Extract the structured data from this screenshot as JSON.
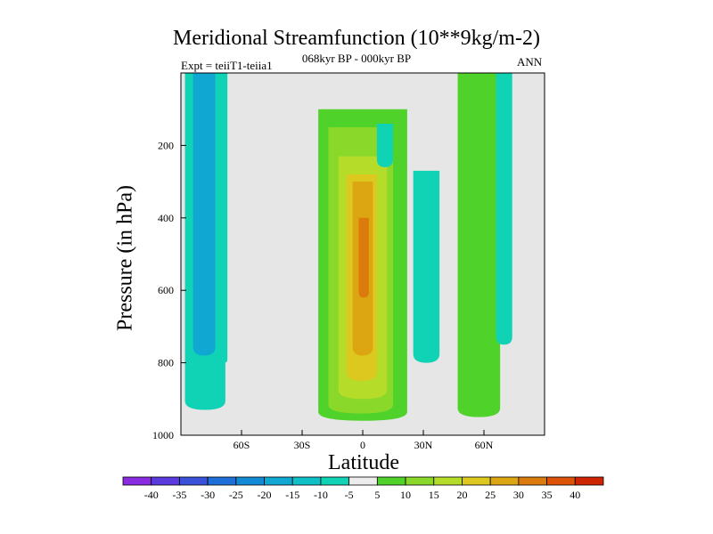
{
  "chart_data": {
    "type": "heatmap",
    "title": "Meridional Streamfunction (10**9kg/m-2)",
    "subtitle": "068kyr BP - 000kyr BP",
    "experiment_label": "Expt = teiiT1-teiia1",
    "season_label": "ANN",
    "xlabel": "Latitude",
    "ylabel": "Pressure (in hPa)",
    "x_range": [
      -90,
      90
    ],
    "y_range": [
      1000,
      0
    ],
    "x_ticks": [
      {
        "value": -60,
        "label": "60S"
      },
      {
        "value": -30,
        "label": "30S"
      },
      {
        "value": 0,
        "label": "0"
      },
      {
        "value": 30,
        "label": "30N"
      },
      {
        "value": 60,
        "label": "60N"
      }
    ],
    "y_ticks": [
      {
        "value": 200,
        "label": "200"
      },
      {
        "value": 400,
        "label": "400"
      },
      {
        "value": 600,
        "label": "600"
      },
      {
        "value": 800,
        "label": "800"
      },
      {
        "value": 1000,
        "label": "1000"
      }
    ],
    "background_color": "#e6e6e6",
    "colorbar": {
      "labels": [
        "-40",
        "-35",
        "-30",
        "-25",
        "-20",
        "-15",
        "-10",
        "-5",
        "5",
        "10",
        "15",
        "20",
        "25",
        "30",
        "35",
        "40"
      ],
      "colors": [
        "#8a2be2",
        "#5a3adc",
        "#3a52d8",
        "#1f6fd9",
        "#138ad6",
        "#10a7d3",
        "#0fbfc8",
        "#10d2b5",
        "#ececec",
        "#4fd22a",
        "#8ad82a",
        "#b6dc2a",
        "#dcc81e",
        "#dca512",
        "#dc7b0d",
        "#dc5206",
        "#cc2500"
      ]
    },
    "regions": [
      {
        "name": "sh-high-lat-negative",
        "value": -10,
        "color": "#10d2b5",
        "lat_min": -88,
        "lat_max": -68,
        "p_top": 0,
        "p_bottom": 930
      },
      {
        "name": "sh-high-lat-core",
        "value": -15,
        "color": "#10a7d3",
        "lat_min": -84,
        "lat_max": -73,
        "p_top": 0,
        "p_bottom": 780
      },
      {
        "name": "sh-narrow-column",
        "value": -5,
        "color": "#10d2b5",
        "lat_min": -70,
        "lat_max": -67,
        "p_top": 0,
        "p_bottom": 800
      },
      {
        "name": "tropical-positive-outer",
        "value": 5,
        "color": "#4fd22a",
        "lat_min": -22,
        "lat_max": 22,
        "p_top": 100,
        "p_bottom": 960
      },
      {
        "name": "tropical-positive-10",
        "value": 10,
        "color": "#8ad82a",
        "lat_min": -17,
        "lat_max": 15,
        "p_top": 150,
        "p_bottom": 940
      },
      {
        "name": "tropical-positive-15",
        "value": 15,
        "color": "#b6dc2a",
        "lat_min": -12,
        "lat_max": 12,
        "p_top": 230,
        "p_bottom": 900
      },
      {
        "name": "tropical-positive-20",
        "value": 20,
        "color": "#dcc81e",
        "lat_min": -8,
        "lat_max": 7,
        "p_top": 280,
        "p_bottom": 850
      },
      {
        "name": "tropical-positive-25",
        "value": 25,
        "color": "#dca512",
        "lat_min": -5,
        "lat_max": 5,
        "p_top": 300,
        "p_bottom": 780
      },
      {
        "name": "tropical-positive-30",
        "value": 30,
        "color": "#dc7b0d",
        "lat_min": -2,
        "lat_max": 3,
        "p_top": 400,
        "p_bottom": 620
      },
      {
        "name": "upper-negative-blob",
        "value": -5,
        "color": "#10d2b5",
        "lat_min": 7,
        "lat_max": 15,
        "p_top": 140,
        "p_bottom": 260
      },
      {
        "name": "nh-subtropical-negative",
        "value": -5,
        "color": "#10d2b5",
        "lat_min": 25,
        "lat_max": 38,
        "p_top": 270,
        "p_bottom": 800
      },
      {
        "name": "nh-midlat-positive",
        "value": 10,
        "color": "#4fd22a",
        "lat_min": 47,
        "lat_max": 68,
        "p_top": 0,
        "p_bottom": 950
      },
      {
        "name": "nh-high-lat-negative",
        "value": -5,
        "color": "#10d2b5",
        "lat_min": 66,
        "lat_max": 74,
        "p_top": 0,
        "p_bottom": 750
      }
    ]
  }
}
